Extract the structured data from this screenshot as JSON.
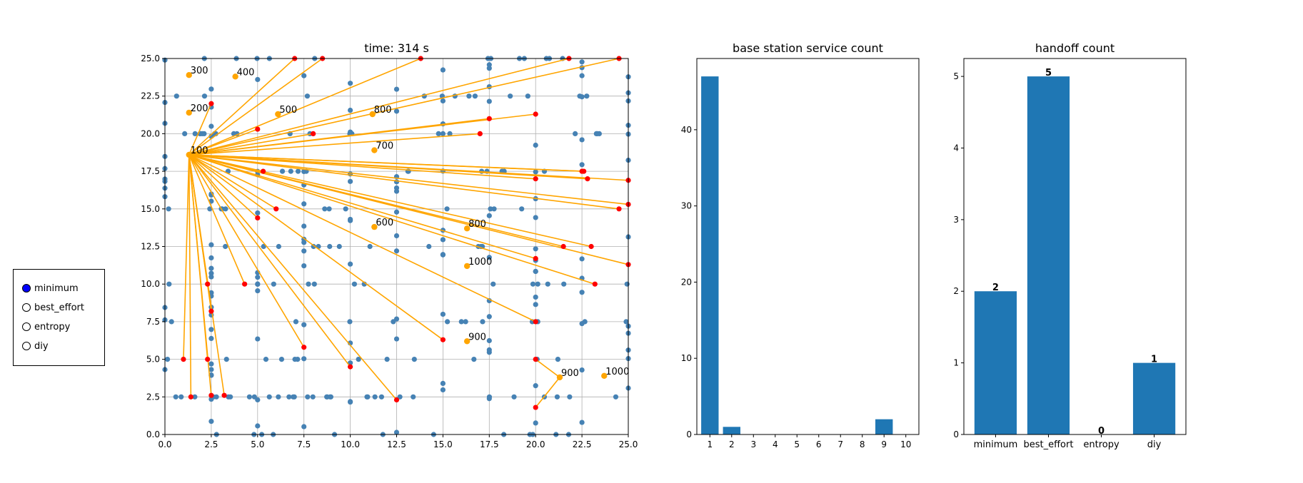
{
  "colors": {
    "node": "#4682b4",
    "link": "#ffa500",
    "station": "#ffa500",
    "highlight": "#ff0000",
    "bar": "#1f77b4",
    "grid": "#b0b0b0",
    "radio_selected": "#0000ff"
  },
  "controls": {
    "radio_options": [
      {
        "label": "minimum",
        "selected": true
      },
      {
        "label": "best_effort",
        "selected": false
      },
      {
        "label": "entropy",
        "selected": false
      },
      {
        "label": "diy",
        "selected": false
      }
    ]
  },
  "chart_data": [
    {
      "type": "scatter",
      "title": "time: 314 s",
      "xlabel": "",
      "ylabel": "",
      "xlim": [
        0,
        25
      ],
      "ylim": [
        0,
        25
      ],
      "grid": true,
      "x_ticks": [
        "0.0",
        "2.5",
        "5.0",
        "7.5",
        "10.0",
        "12.5",
        "15.0",
        "17.5",
        "20.0",
        "22.5",
        "25.0"
      ],
      "y_ticks": [
        "0.0",
        "2.5",
        "5.0",
        "7.5",
        "10.0",
        "12.5",
        "15.0",
        "17.5",
        "20.0",
        "22.5",
        "25.0"
      ],
      "base_stations": [
        {
          "x": 1.3,
          "y": 23.9,
          "label": "300"
        },
        {
          "x": 3.8,
          "y": 23.8,
          "label": "400"
        },
        {
          "x": 1.3,
          "y": 21.4,
          "label": "200"
        },
        {
          "x": 6.1,
          "y": 21.3,
          "label": "500"
        },
        {
          "x": 11.2,
          "y": 21.3,
          "label": "800"
        },
        {
          "x": 1.3,
          "y": 18.6,
          "label": "100"
        },
        {
          "x": 11.3,
          "y": 18.9,
          "label": "700"
        },
        {
          "x": 11.3,
          "y": 13.8,
          "label": "600"
        },
        {
          "x": 16.3,
          "y": 13.7,
          "label": "800"
        },
        {
          "x": 16.3,
          "y": 11.2,
          "label": "1000"
        },
        {
          "x": 16.3,
          "y": 6.2,
          "label": "900"
        },
        {
          "x": 21.3,
          "y": 3.8,
          "label": "900"
        },
        {
          "x": 23.7,
          "y": 3.9,
          "label": "1000"
        }
      ],
      "connected_users": [
        [
          8.5,
          25.0
        ],
        [
          13.8,
          25.0
        ],
        [
          21.8,
          25.0
        ],
        [
          24.5,
          25.0
        ],
        [
          7.0,
          25.0
        ],
        [
          2.5,
          22.0
        ],
        [
          5.0,
          20.3
        ],
        [
          8.0,
          20.0
        ],
        [
          17.0,
          20.0
        ],
        [
          17.5,
          21.0
        ],
        [
          20.0,
          21.3
        ],
        [
          5.3,
          17.5
        ],
        [
          20.0,
          17.0
        ],
        [
          22.5,
          17.5
        ],
        [
          22.8,
          17.0
        ],
        [
          25.0,
          16.9
        ],
        [
          22.6,
          17.5
        ],
        [
          6.0,
          15.0
        ],
        [
          5.0,
          14.4
        ],
        [
          24.5,
          15.0
        ],
        [
          25.0,
          15.3
        ],
        [
          21.5,
          12.5
        ],
        [
          23.0,
          12.5
        ],
        [
          25.0,
          11.3
        ],
        [
          4.3,
          10.0
        ],
        [
          23.2,
          10.0
        ],
        [
          20.0,
          11.7
        ],
        [
          2.3,
          10.0
        ],
        [
          2.5,
          8.2
        ],
        [
          7.5,
          5.8
        ],
        [
          10.0,
          4.5
        ],
        [
          12.5,
          2.3
        ],
        [
          15.0,
          6.3
        ],
        [
          20.0,
          7.5
        ],
        [
          1.0,
          5.0
        ],
        [
          2.3,
          5.0
        ],
        [
          1.4,
          2.5
        ],
        [
          2.5,
          2.6
        ],
        [
          3.2,
          2.6
        ],
        [
          20.0,
          1.8
        ],
        [
          20.0,
          5.0
        ]
      ],
      "network_nodes_description": "dense steelblue user markers along grid lines x,y ∈ {0,2.5,...,25}"
    },
    {
      "type": "bar",
      "title": "base station service count",
      "xlabel": "",
      "ylabel": "",
      "categories": [
        "1",
        "2",
        "3",
        "4",
        "5",
        "6",
        "7",
        "8",
        "9",
        "10"
      ],
      "values": [
        47,
        1,
        0,
        0,
        0,
        0,
        0,
        0,
        2,
        0
      ],
      "ylim": [
        0,
        49.35
      ],
      "y_ticks": [
        "0",
        "10",
        "20",
        "30",
        "40"
      ]
    },
    {
      "type": "bar",
      "title": "handoff count",
      "xlabel": "",
      "ylabel": "",
      "categories": [
        "minimum",
        "best_effort",
        "entropy",
        "diy"
      ],
      "values": [
        2,
        5,
        0,
        1
      ],
      "value_labels": [
        "2",
        "5",
        "0",
        "1"
      ],
      "ylim": [
        0,
        5.25
      ],
      "y_ticks": [
        "0",
        "1",
        "2",
        "3",
        "4",
        "5"
      ]
    }
  ]
}
